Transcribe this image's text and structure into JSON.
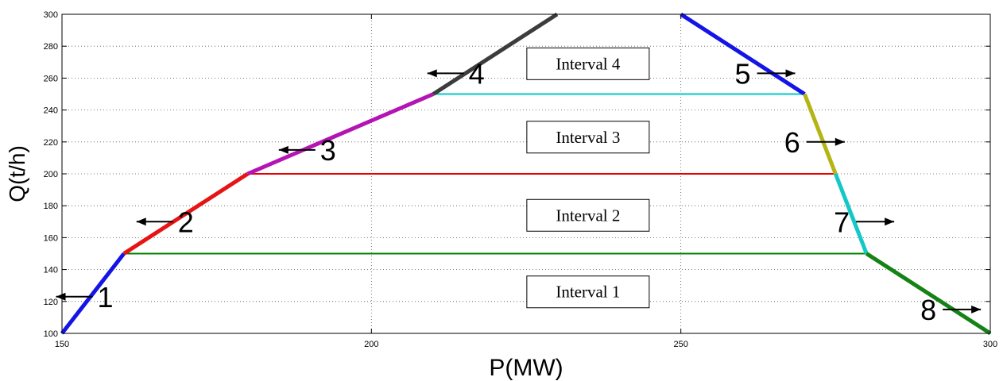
{
  "chart_data": {
    "type": "line",
    "xlabel": "P(MW)",
    "ylabel": "Q(t/h)",
    "xlim": [
      150,
      300
    ],
    "ylim": [
      100,
      300
    ],
    "xticks": [
      150,
      200,
      250,
      300
    ],
    "yticks": [
      100,
      120,
      140,
      160,
      180,
      200,
      220,
      240,
      260,
      280,
      300
    ],
    "grid": true,
    "series": [
      {
        "name": "1",
        "color": "#1414e6",
        "points": [
          [
            150,
            100
          ],
          [
            160,
            150
          ]
        ]
      },
      {
        "name": "2",
        "color": "#e61414",
        "points": [
          [
            160,
            150
          ],
          [
            180,
            200
          ]
        ]
      },
      {
        "name": "3",
        "color": "#b414b4",
        "points": [
          [
            180,
            200
          ],
          [
            210,
            250
          ]
        ]
      },
      {
        "name": "4",
        "color": "#3c3c3c",
        "points": [
          [
            210,
            250
          ],
          [
            230,
            300
          ]
        ]
      },
      {
        "name": "5",
        "color": "#1414e6",
        "points": [
          [
            250,
            300
          ],
          [
            270,
            250
          ]
        ]
      },
      {
        "name": "6",
        "color": "#b4b414",
        "points": [
          [
            270,
            250
          ],
          [
            275,
            200
          ]
        ]
      },
      {
        "name": "7",
        "color": "#14c8c8",
        "points": [
          [
            275,
            200
          ],
          [
            280,
            150
          ]
        ]
      },
      {
        "name": "8",
        "color": "#148214",
        "points": [
          [
            280,
            150
          ],
          [
            300,
            100
          ]
        ]
      }
    ],
    "interval_lines": [
      {
        "y": 150,
        "x": [
          160,
          280
        ],
        "color": "#008000"
      },
      {
        "y": 200,
        "x": [
          180,
          275
        ],
        "color": "#e60000"
      },
      {
        "y": 250,
        "x": [
          210,
          270
        ],
        "color": "#00c8c8"
      }
    ],
    "interval_labels": [
      {
        "text": "Interval 1",
        "x": 235,
        "y": 126
      },
      {
        "text": "Interval 2",
        "x": 235,
        "y": 174
      },
      {
        "text": "Interval 3",
        "x": 235,
        "y": 223
      },
      {
        "text": "Interval 4",
        "x": 235,
        "y": 269
      }
    ],
    "segment_annotations": [
      {
        "text": "1",
        "x": 157,
        "y": 123
      },
      {
        "text": "2",
        "x": 170,
        "y": 170
      },
      {
        "text": "3",
        "x": 193,
        "y": 215
      },
      {
        "text": "4",
        "x": 217,
        "y": 263
      },
      {
        "text": "5",
        "x": 260,
        "y": 263
      },
      {
        "text": "6",
        "x": 268,
        "y": 220
      },
      {
        "text": "7",
        "x": 276,
        "y": 170
      },
      {
        "text": "8",
        "x": 290,
        "y": 115
      }
    ]
  }
}
